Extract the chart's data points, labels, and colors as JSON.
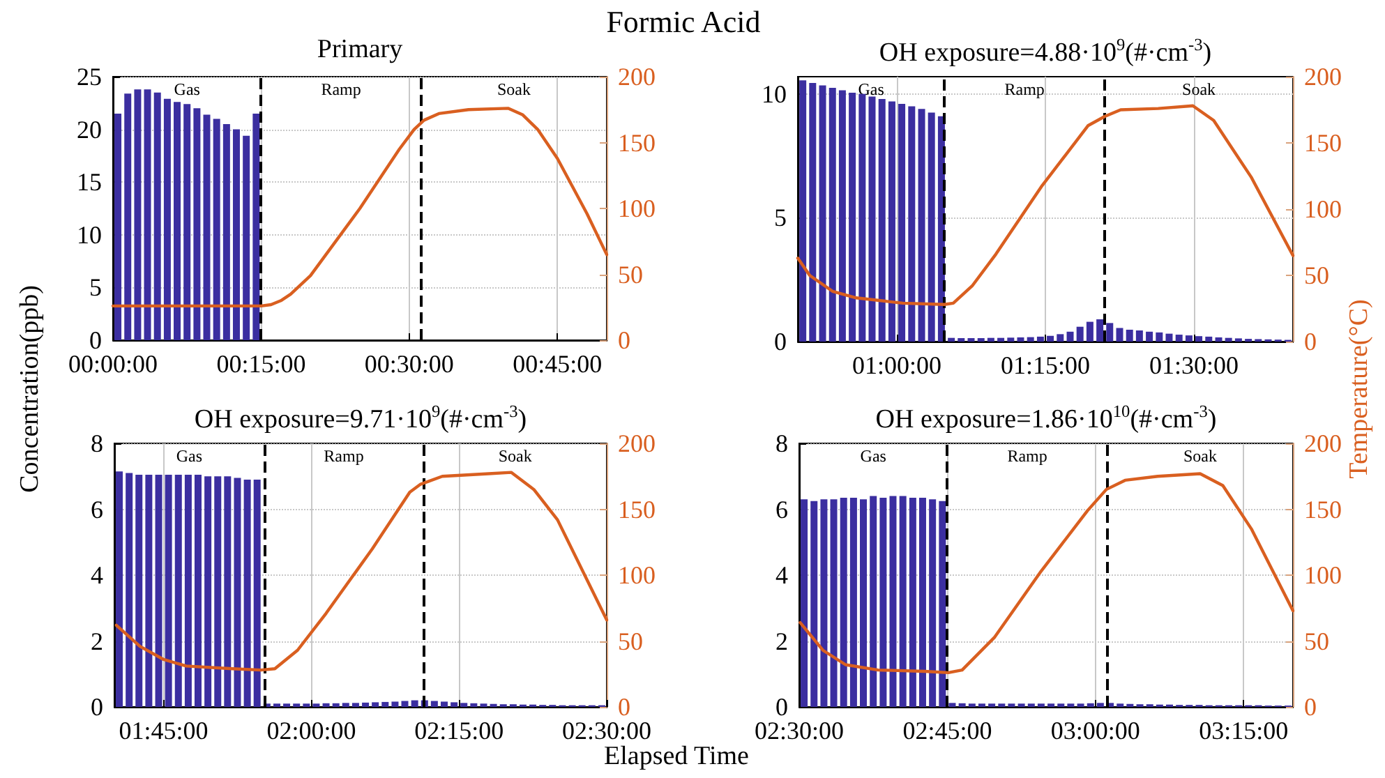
{
  "chart_data": [
    {
      "type": "bar",
      "title": "Primary",
      "ylabel": "Concentration(ppb)",
      "annotations": [
        "Formic Acid",
        "Gas",
        "Ramp",
        "Soak"
      ],
      "xlim": [
        0,
        0.8333
      ],
      "xticks": [
        {
          "value": 0,
          "label": "00:00:00"
        },
        {
          "value": 0.25,
          "label": "00:15:00"
        },
        {
          "value": 0.5,
          "label": "00:30:00"
        },
        {
          "value": 0.75,
          "label": "00:45:00"
        }
      ],
      "ylim": [
        0,
        25
      ],
      "yticks": [
        0,
        5,
        10,
        15,
        20,
        25
      ],
      "y2lim": [
        0,
        200
      ],
      "y2ticks": [
        0,
        50,
        100,
        150,
        200
      ],
      "grid": true,
      "ref_lines": [
        {
          "axis": "x",
          "value": 0.25,
          "color": "#000000",
          "line_style": "dashed"
        },
        {
          "axis": "x",
          "value": 0.52,
          "color": "#000000",
          "line_style": "dashed"
        }
      ],
      "series": [
        {
          "color": "#3b2ea0",
          "x": [
            0.0083,
            0.025,
            0.0417,
            0.0583,
            0.075,
            0.0917,
            0.1083,
            0.125,
            0.1417,
            0.1583,
            0.175,
            0.1917,
            0.2083,
            0.225,
            0.2417
          ],
          "values": [
            21.5,
            23.4,
            23.8,
            23.8,
            23.5,
            22.9,
            22.6,
            22.4,
            22.0,
            21.4,
            21.0,
            20.5,
            20.0,
            19.4,
            21.5
          ]
        },
        {
          "type": "line",
          "axis": "y2",
          "color": "#d95f20",
          "x": [
            0,
            0.25,
            0.2667,
            0.2833,
            0.3,
            0.3333,
            0.4167,
            0.4833,
            0.5083,
            0.525,
            0.55,
            0.6,
            0.6667,
            0.6917,
            0.7167,
            0.75,
            0.8,
            0.8333
          ],
          "values": [
            26,
            26,
            27,
            30,
            35,
            49,
            100,
            145,
            160,
            167,
            172,
            175,
            176,
            171,
            160,
            138,
            96,
            65
          ]
        }
      ]
    },
    {
      "type": "bar",
      "title": "OH exposure=4.88·10$^{9}$(#·cm$^{-3}$)",
      "y2label": "Temperature(°C)",
      "annotations": [
        "Gas",
        "Ramp",
        "Soak"
      ],
      "xlim": [
        0.8333,
        1.6667
      ],
      "xticks": [
        {
          "value": 1,
          "label": "01:00:00"
        },
        {
          "value": 1.25,
          "label": "01:15:00"
        },
        {
          "value": 1.5,
          "label": "01:30:00"
        }
      ],
      "ylim": [
        0,
        10.7
      ],
      "yticks": [
        0,
        5,
        10
      ],
      "y2lim": [
        0,
        200
      ],
      "y2ticks": [
        0,
        50,
        100,
        150,
        200
      ],
      "grid": true,
      "ref_lines": [
        {
          "axis": "x",
          "value": 1.08,
          "color": "#000000",
          "line_style": "dashed"
        },
        {
          "axis": "x",
          "value": 1.35,
          "color": "#000000",
          "line_style": "dashed"
        }
      ],
      "series": [
        {
          "color": "#3b2ea0",
          "x": [
            0.8417,
            0.8583,
            0.875,
            0.8917,
            0.9083,
            0.925,
            0.9417,
            0.9583,
            0.975,
            0.9917,
            1.0083,
            1.025,
            1.0417,
            1.0583,
            1.075,
            1.0917,
            1.1083,
            1.125,
            1.1417,
            1.1583,
            1.175,
            1.1917,
            1.2083,
            1.225,
            1.2417,
            1.2583,
            1.275,
            1.2917,
            1.3083,
            1.325,
            1.3417,
            1.3583,
            1.375,
            1.3917,
            1.4083,
            1.425,
            1.4417,
            1.4583,
            1.475,
            1.4917,
            1.5083,
            1.525,
            1.5417,
            1.5583,
            1.575,
            1.5917,
            1.6083,
            1.625,
            1.6417,
            1.6583
          ],
          "values": [
            10.55,
            10.45,
            10.35,
            10.25,
            10.15,
            10.05,
            10.0,
            9.9,
            9.8,
            9.7,
            9.6,
            9.5,
            9.4,
            9.25,
            9.1,
            0.15,
            0.14,
            0.14,
            0.14,
            0.15,
            0.15,
            0.16,
            0.17,
            0.18,
            0.2,
            0.23,
            0.3,
            0.4,
            0.6,
            0.8,
            0.9,
            0.75,
            0.55,
            0.48,
            0.45,
            0.4,
            0.37,
            0.32,
            0.28,
            0.25,
            0.22,
            0.2,
            0.17,
            0.15,
            0.13,
            0.11,
            0.1,
            0.09,
            0.08,
            0.07
          ]
        },
        {
          "type": "line",
          "axis": "y2",
          "color": "#d95f20",
          "x": [
            0.8333,
            0.8533,
            0.8917,
            0.9317,
            1.01,
            1.08,
            1.095,
            1.1267,
            1.1667,
            1.2433,
            1.3217,
            1.35,
            1.3767,
            1.44,
            1.4983,
            1.5333,
            1.5967,
            1.6667
          ],
          "values": [
            63,
            50,
            38,
            33,
            29,
            28,
            29,
            42,
            66,
            117,
            163,
            170,
            175,
            176,
            178,
            167,
            124,
            65
          ]
        }
      ]
    },
    {
      "type": "bar",
      "title": "OH exposure=9.71·10$^{9}$(#·cm$^{-3}$)",
      "annotations": [
        "Gas",
        "Ramp",
        "Soak"
      ],
      "xlim": [
        1.6667,
        2.5
      ],
      "xticks": [
        {
          "value": 1.75,
          "label": "01:45:00"
        },
        {
          "value": 2,
          "label": "02:00:00"
        },
        {
          "value": 2.25,
          "label": "02:15:00"
        },
        {
          "value": 2.5,
          "label": "02:30:00"
        }
      ],
      "ylim": [
        0,
        8
      ],
      "yticks": [
        0,
        2,
        4,
        6,
        8
      ],
      "y2lim": [
        0,
        200
      ],
      "y2ticks": [
        0,
        50,
        100,
        150,
        200
      ],
      "grid": true,
      "ref_lines": [
        {
          "axis": "x",
          "value": 1.92,
          "color": "#000000",
          "line_style": "dashed"
        },
        {
          "axis": "x",
          "value": 2.19,
          "color": "#000000",
          "line_style": "dashed"
        }
      ],
      "series": [
        {
          "color": "#3b2ea0",
          "x": [
            1.675,
            1.6917,
            1.7083,
            1.725,
            1.7417,
            1.7583,
            1.775,
            1.7917,
            1.8083,
            1.825,
            1.8417,
            1.8583,
            1.875,
            1.8917,
            1.9083,
            1.925,
            1.9417,
            1.9583,
            1.975,
            1.9917,
            2.0083,
            2.025,
            2.0417,
            2.0583,
            2.075,
            2.0917,
            2.1083,
            2.125,
            2.1417,
            2.1583,
            2.175,
            2.1917,
            2.2083,
            2.225,
            2.2417,
            2.2583,
            2.275,
            2.2917,
            2.3083,
            2.325,
            2.3417,
            2.3583,
            2.375,
            2.3917,
            2.4083,
            2.425,
            2.4417,
            2.4583,
            2.475,
            2.4917
          ],
          "values": [
            7.15,
            7.1,
            7.05,
            7.05,
            7.05,
            7.05,
            7.05,
            7.05,
            7.05,
            7.0,
            7.0,
            7.0,
            6.95,
            6.9,
            6.9,
            0.1,
            0.1,
            0.1,
            0.1,
            0.1,
            0.1,
            0.11,
            0.11,
            0.12,
            0.12,
            0.13,
            0.14,
            0.15,
            0.16,
            0.18,
            0.2,
            0.2,
            0.18,
            0.16,
            0.14,
            0.12,
            0.11,
            0.1,
            0.09,
            0.08,
            0.08,
            0.07,
            0.07,
            0.06,
            0.06,
            0.05,
            0.05,
            0.05,
            0.05,
            0.05
          ]
        },
        {
          "type": "line",
          "axis": "y2",
          "color": "#d95f20",
          "x": [
            1.67,
            1.71,
            1.75,
            1.7883,
            1.8667,
            1.915,
            1.9383,
            1.9767,
            2.025,
            2.1033,
            2.1667,
            2.185,
            2.2217,
            2.3,
            2.3383,
            2.3767,
            2.4167,
            2.5
          ],
          "values": [
            62,
            46,
            36,
            31,
            29,
            28,
            29,
            43,
            71,
            120,
            163,
            169,
            175,
            177,
            178,
            165,
            142,
            66
          ]
        }
      ]
    },
    {
      "type": "bar",
      "title": "OH exposure=1.86·10$^{10}$(#·cm$^{-3}$)",
      "xlabel": "Elapsed Time",
      "annotations": [
        "Gas",
        "Ramp",
        "Soak"
      ],
      "xlim": [
        2.5,
        3.3333
      ],
      "xticks": [
        {
          "value": 2.5,
          "label": "02:30:00"
        },
        {
          "value": 2.75,
          "label": "02:45:00"
        },
        {
          "value": 3,
          "label": "03:00:00"
        },
        {
          "value": 3.25,
          "label": "03:15:00"
        }
      ],
      "ylim": [
        0,
        8
      ],
      "yticks": [
        0,
        2,
        4,
        6,
        8
      ],
      "y2lim": [
        0,
        200
      ],
      "y2ticks": [
        0,
        50,
        100,
        150,
        200
      ],
      "grid": true,
      "ref_lines": [
        {
          "axis": "x",
          "value": 2.75,
          "color": "#000000",
          "line_style": "dashed"
        },
        {
          "axis": "x",
          "value": 3.02,
          "color": "#000000",
          "line_style": "dashed"
        }
      ],
      "series": [
        {
          "color": "#3b2ea0",
          "x": [
            2.5083,
            2.525,
            2.5417,
            2.5583,
            2.575,
            2.5917,
            2.6083,
            2.625,
            2.6417,
            2.6583,
            2.675,
            2.6917,
            2.7083,
            2.725,
            2.7417,
            2.7583,
            2.775,
            2.7917,
            2.8083,
            2.825,
            2.8417,
            2.8583,
            2.875,
            2.8917,
            2.9083,
            2.925,
            2.9417,
            2.9583,
            2.975,
            2.9917,
            3.0083,
            3.025,
            3.0417,
            3.0583,
            3.075,
            3.0917,
            3.1083,
            3.125,
            3.1417,
            3.1583,
            3.175,
            3.1917,
            3.2083,
            3.225,
            3.2417,
            3.2583,
            3.275,
            3.2917,
            3.3083,
            3.325
          ],
          "values": [
            6.3,
            6.25,
            6.3,
            6.3,
            6.35,
            6.35,
            6.3,
            6.4,
            6.35,
            6.4,
            6.4,
            6.35,
            6.35,
            6.3,
            6.25,
            0.12,
            0.11,
            0.1,
            0.1,
            0.1,
            0.1,
            0.1,
            0.1,
            0.1,
            0.1,
            0.1,
            0.1,
            0.1,
            0.1,
            0.11,
            0.12,
            0.12,
            0.1,
            0.09,
            0.08,
            0.08,
            0.07,
            0.07,
            0.06,
            0.06,
            0.06,
            0.05,
            0.05,
            0.05,
            0.05,
            0.05,
            0.05,
            0.04,
            0.04,
            0.04
          ]
        },
        {
          "type": "line",
          "axis": "y2",
          "color": "#d95f20",
          "x": [
            2.5017,
            2.54,
            2.5783,
            2.6333,
            2.7117,
            2.7517,
            2.775,
            2.83,
            2.9083,
            2.9867,
            3.0183,
            3.05,
            3.105,
            3.1767,
            3.215,
            3.2633,
            3.3333
          ],
          "values": [
            64,
            43,
            32,
            28,
            27,
            26,
            28,
            53,
            103,
            149,
            165,
            172,
            175,
            177,
            168,
            135,
            73
          ]
        }
      ]
    }
  ]
}
